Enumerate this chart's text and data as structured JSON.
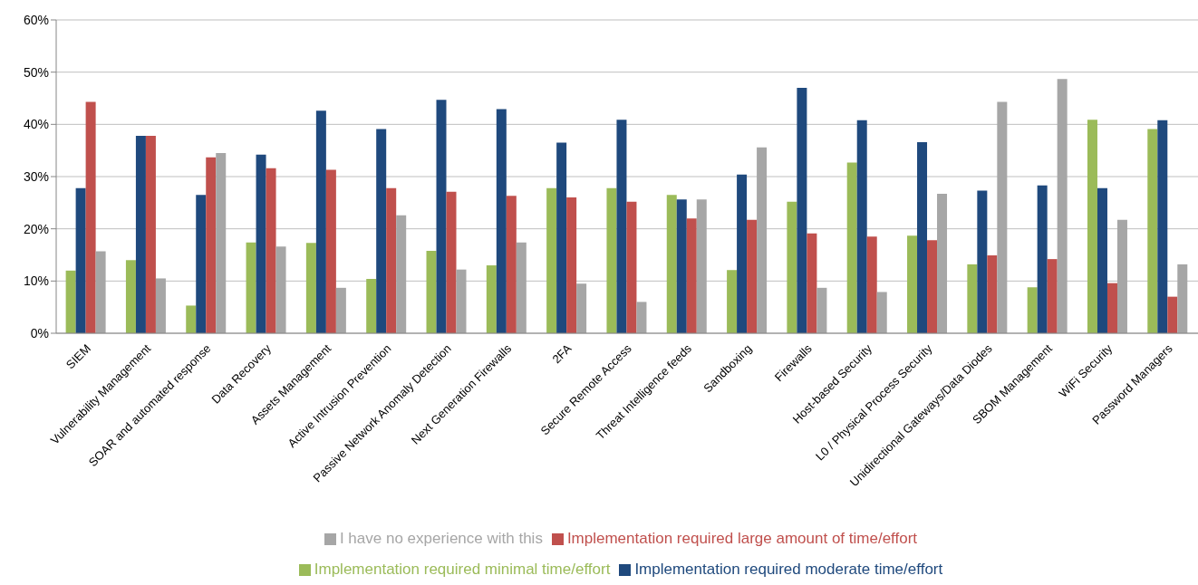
{
  "chart_data": {
    "type": "bar",
    "categories": [
      "SIEM",
      "Vulnerability Management",
      "SOAR and automated response",
      "Data Recovery",
      "Assets Management",
      "Active Intrusion Prevention",
      "Passive Network Anomaly Detection",
      "Next Generation Firewalls",
      "2FA",
      "Secure Remote Access",
      "Threat Intelligence feeds",
      "Sandboxing",
      "Firewalls",
      "Host-based Security",
      "L0 / Physical Process Security",
      "Unidirectional Gateways/Data Diodes",
      "SBOM Management",
      "WiFi Security",
      "Password Managers"
    ],
    "series": [
      {
        "name": "Implementation required minimal time/effort",
        "color": "#9bbb59",
        "values": [
          12,
          14,
          5.3,
          17.4,
          17.3,
          10.4,
          15.8,
          13,
          27.8,
          27.8,
          26.5,
          12.1,
          25.2,
          32.7,
          18.7,
          13.2,
          8.8,
          40.9,
          39.1
        ]
      },
      {
        "name": "Implementation required moderate time/effort",
        "color": "#1f497d",
        "values": [
          27.8,
          37.8,
          26.5,
          34.2,
          42.6,
          39.1,
          44.7,
          42.9,
          36.5,
          40.9,
          25.6,
          30.4,
          47,
          40.8,
          36.6,
          27.3,
          28.3,
          27.8,
          40.8
        ]
      },
      {
        "name": "Implementation required large amount of time/effort",
        "color": "#c0504d",
        "values": [
          44.3,
          37.8,
          33.7,
          31.6,
          31.3,
          27.8,
          27.1,
          26.3,
          26,
          25.2,
          22,
          21.7,
          19.1,
          18.5,
          17.8,
          14.9,
          14.2,
          9.6,
          7
        ]
      },
      {
        "name": "I have no experience with this",
        "color": "#a6a6a6",
        "values": [
          15.7,
          10.5,
          34.5,
          16.6,
          8.7,
          22.6,
          12.2,
          17.4,
          9.5,
          6,
          25.6,
          35.6,
          8.7,
          7.9,
          26.7,
          44.3,
          48.7,
          21.7,
          13.2
        ]
      }
    ],
    "ylim": [
      0,
      60
    ],
    "yticks": [
      {
        "value": 0,
        "label": "0%"
      },
      {
        "value": 10,
        "label": "10%"
      },
      {
        "value": 20,
        "label": "20%"
      },
      {
        "value": 30,
        "label": "30%"
      },
      {
        "value": 40,
        "label": "40%"
      },
      {
        "value": 50,
        "label": "50%"
      },
      {
        "value": 60,
        "label": "60%"
      }
    ],
    "grid": "y",
    "legend": "bottom"
  }
}
